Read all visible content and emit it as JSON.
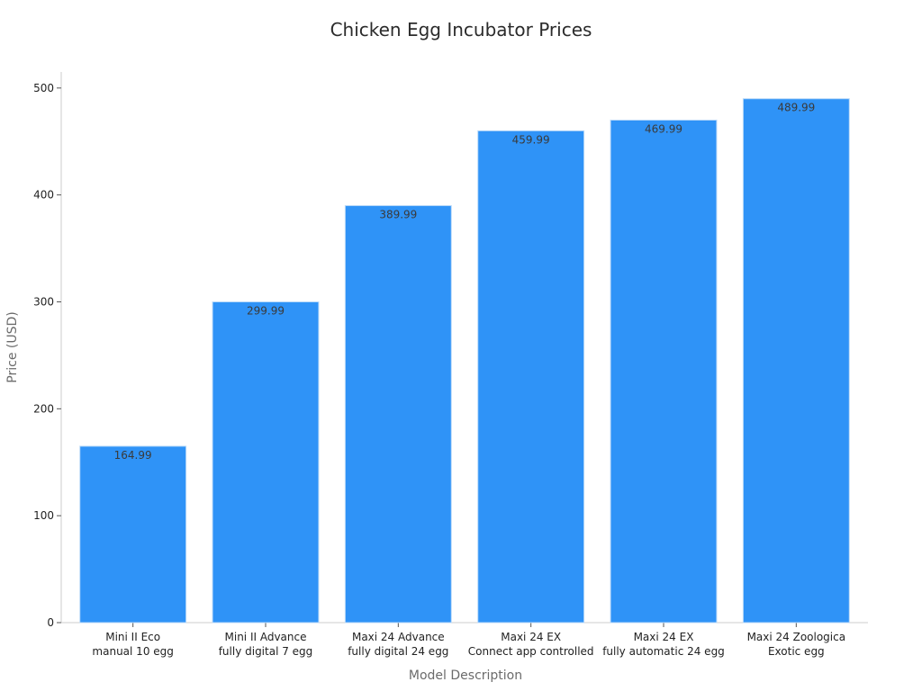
{
  "colors": {
    "bar": "#2f93f7",
    "bar_edge": "#b9d9f8"
  },
  "chart_data": {
    "type": "bar",
    "title": "Chicken Egg Incubator Prices",
    "xlabel": "Model Description",
    "ylabel": "Price (USD)",
    "ylim": [
      0,
      515
    ],
    "yticks": [
      0,
      100,
      200,
      300,
      400,
      500
    ],
    "grid": false,
    "categories": [
      [
        "Mini II Eco",
        "manual 10 egg"
      ],
      [
        "Mini II Advance",
        "fully digital 7 egg"
      ],
      [
        "Maxi 24 Advance",
        "fully digital 24 egg"
      ],
      [
        "Maxi 24 EX",
        "Connect app controlled"
      ],
      [
        "Maxi 24 EX",
        "fully automatic 24 egg"
      ],
      [
        "Maxi 24 Zoologica",
        "Exotic egg"
      ]
    ],
    "values": [
      164.99,
      299.99,
      389.99,
      459.99,
      469.99,
      489.99
    ],
    "data_labels": [
      "164.99",
      "299.99",
      "389.99",
      "459.99",
      "469.99",
      "489.99"
    ]
  }
}
